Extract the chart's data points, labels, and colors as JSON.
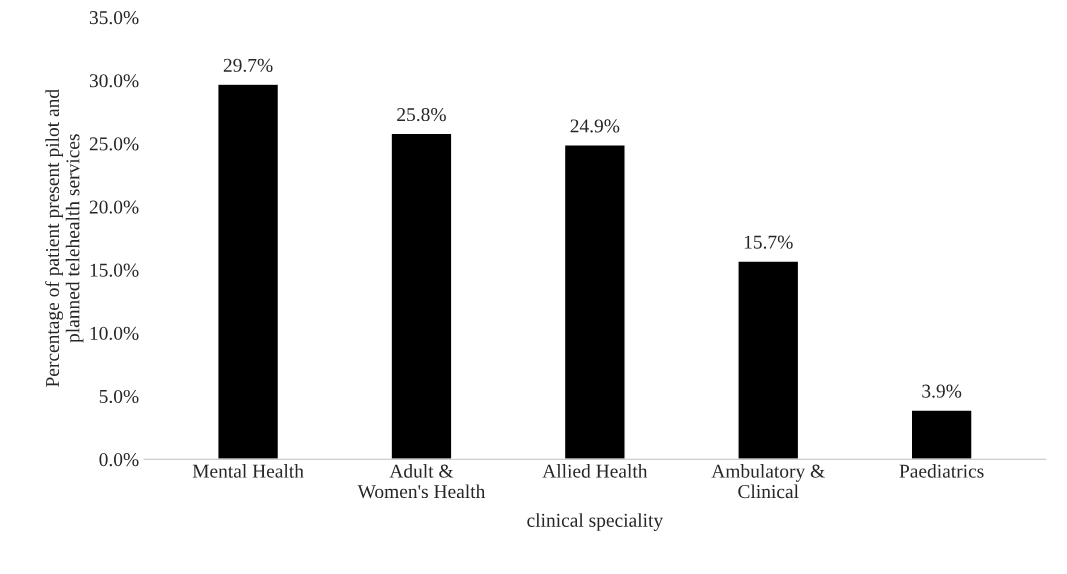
{
  "chart_data": {
    "type": "bar",
    "categories": [
      "Mental Health",
      "Adult &\nWomen's Health",
      "Allied Health",
      "Ambulatory &\nClinical",
      "Paediatrics"
    ],
    "values": [
      29.7,
      25.8,
      24.9,
      15.7,
      3.9
    ],
    "value_labels": [
      "29.7%",
      "25.8%",
      "24.9%",
      "15.7%",
      "3.9%"
    ],
    "color": "#000000",
    "xlabel": "clinical speciality",
    "ylabel": "Percentage of patient present pilot and\nplanned telehealth services",
    "ylim": [
      0,
      35
    ],
    "yticks": [
      {
        "value": 0,
        "label": "0.0%"
      },
      {
        "value": 5,
        "label": "5.0%"
      },
      {
        "value": 10,
        "label": "10.0%"
      },
      {
        "value": 15,
        "label": "15.0%"
      },
      {
        "value": 20,
        "label": "20.0%"
      },
      {
        "value": 25,
        "label": "25.0%"
      },
      {
        "value": 30,
        "label": "30.0%"
      },
      {
        "value": 35,
        "label": "35.0%"
      }
    ],
    "grid": false,
    "legend": false
  }
}
